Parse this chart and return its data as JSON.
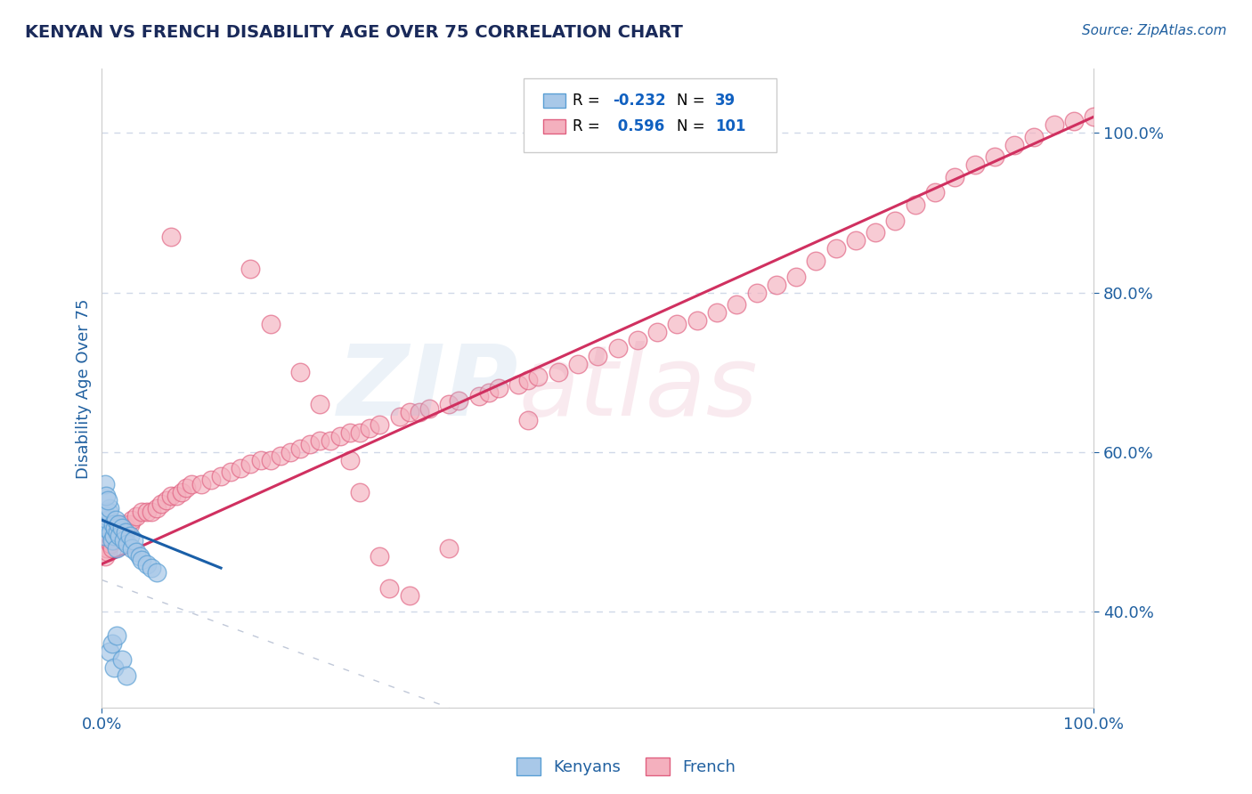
{
  "title": "KENYAN VS FRENCH DISABILITY AGE OVER 75 CORRELATION CHART",
  "source_text": "Source: ZipAtlas.com",
  "ylabel": "Disability Age Over 75",
  "xlim": [
    0.0,
    1.0
  ],
  "ylim": [
    0.28,
    1.08
  ],
  "xtick_labels": [
    "0.0%",
    "100.0%"
  ],
  "xtick_positions": [
    0.0,
    1.0
  ],
  "ytick_labels": [
    "40.0%",
    "60.0%",
    "80.0%",
    "100.0%"
  ],
  "ytick_positions": [
    0.4,
    0.6,
    0.8,
    1.0
  ],
  "legend_labels": [
    "Kenyans",
    "French"
  ],
  "legend_r": [
    -0.232,
    0.596
  ],
  "legend_n": [
    39,
    101
  ],
  "blue_color": "#a8c8e8",
  "pink_color": "#f4b0be",
  "blue_edge": "#5a9fd4",
  "pink_edge": "#e06080",
  "trend_blue": "#1a5fa8",
  "trend_pink": "#d03060",
  "ref_line_color": "#c0c8d8",
  "grid_color": "#d0d8e8",
  "watermark_zip_color": "#a0c0e0",
  "watermark_atlas_color": "#e090a8",
  "title_color": "#1a2a5a",
  "label_color": "#2060a0",
  "tick_color": "#2060a0",
  "source_color": "#2060a0",
  "legend_r_color": "#1060c0",
  "legend_n_color": "#1060c0",
  "background_color": "#ffffff",
  "kenyan_x": [
    0.002,
    0.003,
    0.004,
    0.005,
    0.006,
    0.007,
    0.008,
    0.009,
    0.01,
    0.011,
    0.012,
    0.013,
    0.014,
    0.015,
    0.016,
    0.017,
    0.018,
    0.02,
    0.022,
    0.024,
    0.026,
    0.028,
    0.03,
    0.032,
    0.035,
    0.038,
    0.04,
    0.045,
    0.05,
    0.055,
    0.003,
    0.004,
    0.006,
    0.008,
    0.01,
    0.012,
    0.015,
    0.02,
    0.025
  ],
  "kenyan_y": [
    0.495,
    0.51,
    0.505,
    0.52,
    0.515,
    0.525,
    0.53,
    0.5,
    0.49,
    0.51,
    0.495,
    0.505,
    0.515,
    0.48,
    0.5,
    0.51,
    0.495,
    0.505,
    0.49,
    0.5,
    0.485,
    0.495,
    0.48,
    0.49,
    0.475,
    0.47,
    0.465,
    0.46,
    0.455,
    0.45,
    0.56,
    0.545,
    0.54,
    0.35,
    0.36,
    0.33,
    0.37,
    0.34,
    0.32
  ],
  "french_x": [
    0.003,
    0.005,
    0.006,
    0.007,
    0.008,
    0.009,
    0.01,
    0.011,
    0.012,
    0.013,
    0.015,
    0.016,
    0.018,
    0.02,
    0.022,
    0.025,
    0.028,
    0.03,
    0.035,
    0.04,
    0.045,
    0.05,
    0.055,
    0.06,
    0.065,
    0.07,
    0.075,
    0.08,
    0.085,
    0.09,
    0.1,
    0.11,
    0.12,
    0.13,
    0.14,
    0.15,
    0.16,
    0.17,
    0.18,
    0.19,
    0.2,
    0.21,
    0.22,
    0.23,
    0.24,
    0.25,
    0.26,
    0.27,
    0.28,
    0.3,
    0.31,
    0.32,
    0.33,
    0.35,
    0.36,
    0.38,
    0.39,
    0.4,
    0.42,
    0.43,
    0.44,
    0.46,
    0.48,
    0.5,
    0.52,
    0.54,
    0.56,
    0.58,
    0.6,
    0.62,
    0.64,
    0.66,
    0.68,
    0.7,
    0.72,
    0.74,
    0.76,
    0.78,
    0.8,
    0.82,
    0.84,
    0.86,
    0.88,
    0.9,
    0.92,
    0.94,
    0.96,
    0.98,
    1.0,
    0.29,
    0.31,
    0.26,
    0.35,
    0.43,
    0.15,
    0.17,
    0.2,
    0.22,
    0.25,
    0.28,
    0.07
  ],
  "french_y": [
    0.47,
    0.48,
    0.475,
    0.49,
    0.495,
    0.485,
    0.48,
    0.49,
    0.5,
    0.495,
    0.5,
    0.505,
    0.51,
    0.505,
    0.51,
    0.505,
    0.51,
    0.515,
    0.52,
    0.525,
    0.525,
    0.525,
    0.53,
    0.535,
    0.54,
    0.545,
    0.545,
    0.55,
    0.555,
    0.56,
    0.56,
    0.565,
    0.57,
    0.575,
    0.58,
    0.585,
    0.59,
    0.59,
    0.595,
    0.6,
    0.605,
    0.61,
    0.615,
    0.615,
    0.62,
    0.625,
    0.625,
    0.63,
    0.635,
    0.645,
    0.65,
    0.65,
    0.655,
    0.66,
    0.665,
    0.67,
    0.675,
    0.68,
    0.685,
    0.69,
    0.695,
    0.7,
    0.71,
    0.72,
    0.73,
    0.74,
    0.75,
    0.76,
    0.765,
    0.775,
    0.785,
    0.8,
    0.81,
    0.82,
    0.84,
    0.855,
    0.865,
    0.875,
    0.89,
    0.91,
    0.925,
    0.945,
    0.96,
    0.97,
    0.985,
    0.995,
    1.01,
    1.015,
    1.02,
    0.43,
    0.42,
    0.55,
    0.48,
    0.64,
    0.83,
    0.76,
    0.7,
    0.66,
    0.59,
    0.47,
    0.87
  ]
}
